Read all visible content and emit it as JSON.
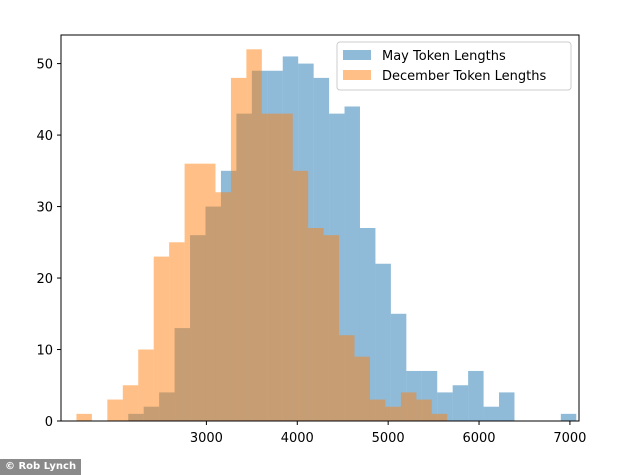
{
  "chart_data": {
    "type": "histogram",
    "xlim": [
      1400,
      7100
    ],
    "ylim": [
      0,
      54
    ],
    "x_ticks": [
      3000,
      4000,
      5000,
      6000,
      7000
    ],
    "x_tick_labels": [
      "3000",
      "4000",
      "5000",
      "6000",
      "7000"
    ],
    "y_ticks": [
      0,
      10,
      20,
      30,
      40,
      50
    ],
    "y_tick_labels": [
      "0",
      "10",
      "20",
      "30",
      "40",
      "50"
    ],
    "grid": false,
    "legend_position": "top-right",
    "series": [
      {
        "name": "May Token Lengths",
        "color": "#1f77b4",
        "alpha": 0.5,
        "bin_edges": [
          2140,
          2310,
          2480,
          2650,
          2820,
          2990,
          3160,
          3330,
          3500,
          3670,
          3840,
          4010,
          4180,
          4350,
          4520,
          4690,
          4860,
          5030,
          5200,
          5370,
          5540,
          5710,
          5880,
          6050,
          6220,
          6390,
          6560,
          6730,
          6900,
          7070,
          7240,
          7410,
          7580,
          7750,
          7920,
          8090
        ],
        "counts": [
          1,
          2,
          4,
          13,
          26,
          30,
          35,
          43,
          49,
          49,
          51,
          50,
          48,
          43,
          44,
          27,
          22,
          15,
          7,
          7,
          4,
          5,
          7,
          2,
          4,
          0,
          0,
          0,
          1,
          0,
          0,
          0,
          0,
          0,
          0
        ]
      },
      {
        "name": "December Token Lengths",
        "color": "#ff7f0e",
        "alpha": 0.5,
        "bin_edges": [
          1570,
          1740,
          1910,
          2080,
          2250,
          2420,
          2590,
          2760,
          2930,
          3100,
          3270,
          3440,
          3610,
          3780,
          3950,
          4120,
          4290,
          4460,
          4630,
          4800,
          4970,
          5140,
          5310,
          5480,
          5650,
          5820,
          5990
        ],
        "counts": [
          1,
          0,
          3,
          5,
          10,
          23,
          25,
          36,
          36,
          32,
          48,
          52,
          43,
          43,
          35,
          27,
          26,
          12,
          9,
          3,
          2,
          4,
          3,
          1,
          0,
          0
        ]
      }
    ]
  },
  "credit": "© Rob Lynch"
}
